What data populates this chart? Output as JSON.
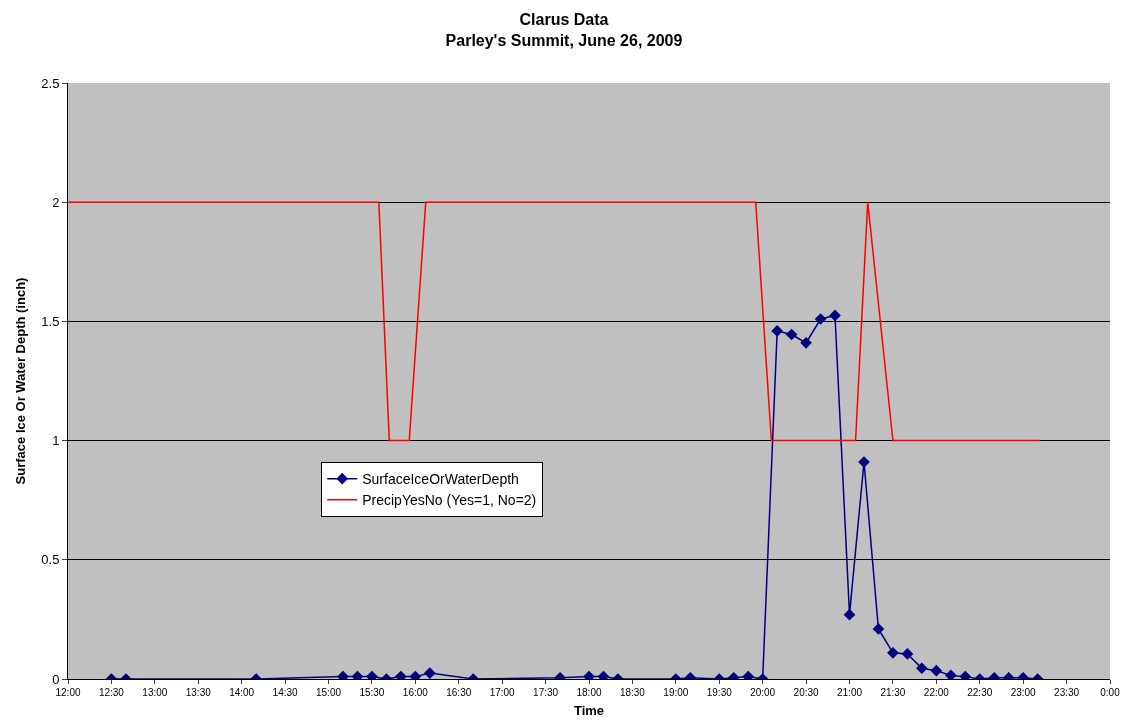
{
  "chart_data": {
    "type": "line",
    "title": "Clarus Data",
    "subtitle": "Parley's Summit, June 26, 2009",
    "xlabel": "Time",
    "ylabel": "Surface Ice Or Water Depth (inch)",
    "xlim": [
      12,
      24
    ],
    "xticks": [
      {
        "value": 12,
        "label": "12:00"
      },
      {
        "value": 12.5,
        "label": "12:30"
      },
      {
        "value": 13,
        "label": "13:00"
      },
      {
        "value": 13.5,
        "label": "13:30"
      },
      {
        "value": 14,
        "label": "14:00"
      },
      {
        "value": 14.5,
        "label": "14:30"
      },
      {
        "value": 15,
        "label": "15:00"
      },
      {
        "value": 15.5,
        "label": "15:30"
      },
      {
        "value": 16,
        "label": "16:00"
      },
      {
        "value": 16.5,
        "label": "16:30"
      },
      {
        "value": 17,
        "label": "17:00"
      },
      {
        "value": 17.5,
        "label": "17:30"
      },
      {
        "value": 18,
        "label": "18:00"
      },
      {
        "value": 18.5,
        "label": "18:30"
      },
      {
        "value": 19,
        "label": "19:00"
      },
      {
        "value": 19.5,
        "label": "19:30"
      },
      {
        "value": 20,
        "label": "20:00"
      },
      {
        "value": 20.5,
        "label": "20:30"
      },
      {
        "value": 21,
        "label": "21:00"
      },
      {
        "value": 21.5,
        "label": "21:30"
      },
      {
        "value": 22,
        "label": "22:00"
      },
      {
        "value": 22.5,
        "label": "22:30"
      },
      {
        "value": 23,
        "label": "23:00"
      },
      {
        "value": 23.5,
        "label": "23:30"
      },
      {
        "value": 24,
        "label": "0:00"
      }
    ],
    "ylim": [
      0,
      2.5
    ],
    "yticks": [
      0,
      0.5,
      1,
      1.5,
      2,
      2.5
    ],
    "grid": "y",
    "legend": "bottom left",
    "series": [
      {
        "name": "SurfaceIceOrWaterDepth",
        "color": "#000080",
        "marker": "diamond",
        "x": [
          12.5,
          12.667,
          14.167,
          15.167,
          15.333,
          15.5,
          15.667,
          15.833,
          16,
          16.167,
          16.667,
          17.667,
          18,
          18.167,
          18.333,
          19,
          19.167,
          19.5,
          19.667,
          19.833,
          20,
          20.167,
          20.333,
          20.5,
          20.667,
          20.833,
          21,
          21.167,
          21.333,
          21.5,
          21.667,
          21.833,
          22,
          22.167,
          22.333,
          22.5,
          22.667,
          22.833,
          23,
          23.167
        ],
        "values": [
          0,
          0,
          0,
          0.01,
          0.01,
          0.01,
          0,
          0.01,
          0.01,
          0.025,
          0,
          0.005,
          0.01,
          0.01,
          0,
          0,
          0.005,
          0,
          0.005,
          0.01,
          0,
          1.46,
          1.445,
          1.41,
          1.51,
          1.525,
          0.27,
          0.91,
          0.21,
          0.11,
          0.105,
          0.045,
          0.035,
          0.015,
          0.01,
          0,
          0.005,
          0.005,
          0.005,
          0
        ]
      },
      {
        "name": "PrecipYesNo (Yes=1, No=2)",
        "color": "#ff0000",
        "marker": "none",
        "x": [
          12,
          15.58,
          15.7,
          15.93,
          16.12,
          19.92,
          20.1,
          21.07,
          21.21,
          21.5,
          23.19
        ],
        "values": [
          2,
          2,
          1,
          1,
          2,
          2,
          1,
          1,
          2,
          1,
          1
        ]
      }
    ]
  }
}
